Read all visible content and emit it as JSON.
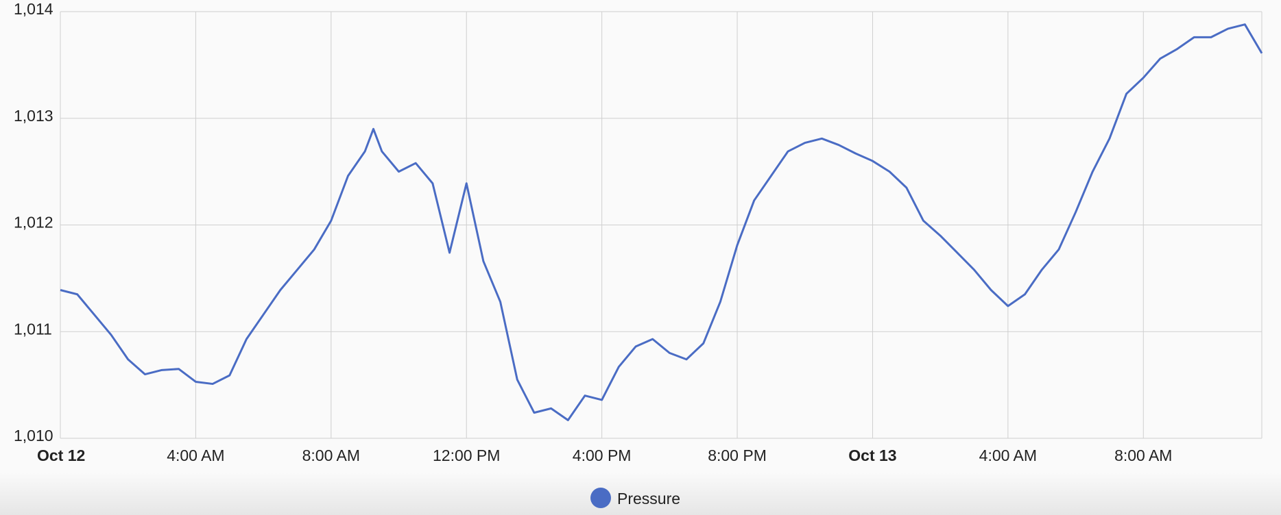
{
  "chart_data": {
    "type": "line",
    "x": [
      0,
      0.5,
      1,
      1.5,
      2,
      2.5,
      3,
      3.5,
      4,
      4.5,
      5,
      5.5,
      6,
      6.5,
      7,
      7.5,
      8,
      8.5,
      9,
      9.25,
      9.5,
      10,
      10.5,
      11,
      11.5,
      12,
      12.5,
      13,
      13.5,
      14,
      14.5,
      15,
      15.5,
      16,
      16.5,
      17,
      17.5,
      18,
      18.5,
      19,
      19.5,
      20,
      20.5,
      21,
      21.5,
      22,
      22.5,
      23,
      23.5,
      24,
      24.5,
      25,
      25.5,
      26,
      26.5,
      27,
      27.5,
      28,
      28.5,
      29,
      29.5,
      30,
      30.5,
      31,
      31.5,
      32,
      32.5,
      33,
      33.5,
      34,
      34.5,
      35,
      35.5
    ],
    "series": [
      {
        "name": "Pressure",
        "color": "#4a6cc4",
        "values": [
          1011.39,
          1011.35,
          1011.16,
          1010.97,
          1010.74,
          1010.6,
          1010.64,
          1010.65,
          1010.53,
          1010.51,
          1010.59,
          1010.93,
          1011.16,
          1011.39,
          1011.58,
          1011.77,
          1012.04,
          1012.46,
          1012.69,
          1012.9,
          1012.69,
          1012.5,
          1012.58,
          1012.39,
          1011.74,
          1012.39,
          1011.66,
          1011.28,
          1010.55,
          1010.24,
          1010.28,
          1010.17,
          1010.4,
          1010.36,
          1010.67,
          1010.86,
          1010.93,
          1010.8,
          1010.74,
          1010.89,
          1011.28,
          1011.81,
          1012.23,
          1012.46,
          1012.69,
          1012.77,
          1012.81,
          1012.75,
          1012.67,
          1012.6,
          1012.5,
          1012.35,
          1012.04,
          1011.9,
          1011.74,
          1011.58,
          1011.39,
          1011.24,
          1011.35,
          1011.58,
          1011.77,
          1012.12,
          1012.5,
          1012.81,
          1013.23,
          1013.38,
          1013.56,
          1013.65,
          1013.76,
          1013.76,
          1013.84,
          1013.88,
          1013.61
        ]
      }
    ],
    "xlim": [
      0,
      35.5
    ],
    "xticks": [
      {
        "value": 0,
        "label": "Oct 12"
      },
      {
        "value": 4,
        "label": "4:00 AM"
      },
      {
        "value": 8,
        "label": "8:00 AM"
      },
      {
        "value": 12,
        "label": "12:00 PM"
      },
      {
        "value": 16,
        "label": "4:00 PM"
      },
      {
        "value": 20,
        "label": "8:00 PM"
      },
      {
        "value": 24,
        "label": "Oct 13"
      },
      {
        "value": 28,
        "label": "4:00 AM"
      },
      {
        "value": 32,
        "label": "8:00 AM"
      }
    ],
    "ylim": [
      1010,
      1014
    ],
    "yticks": [
      {
        "value": 1010,
        "label": "1,010"
      },
      {
        "value": 1011,
        "label": "1,011"
      },
      {
        "value": 1012,
        "label": "1,012"
      },
      {
        "value": 1013,
        "label": "1,013"
      },
      {
        "value": 1014,
        "label": "1,014"
      }
    ],
    "grid": true
  }
}
